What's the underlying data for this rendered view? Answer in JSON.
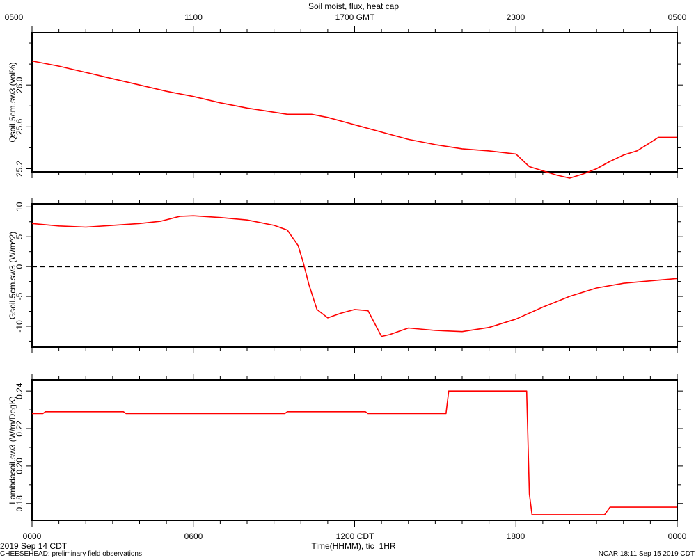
{
  "header": {
    "title": "Soil moist, flux, heat cap",
    "gmt_ticks": [
      "0500",
      "1100",
      "1700 GMT",
      "2300",
      "0500"
    ]
  },
  "footer": {
    "date_label": "2019 Sep 14 CDT",
    "project_label": "CHEESEHEAD: preliminary field observations",
    "time_axis_label": "Time(HHMM), tic=1HR",
    "ncar_label": "NCAR 18:11 Sep 15 2019 CDT",
    "cdt_ticks": [
      "0000",
      "0600",
      "1200 CDT",
      "1800",
      "0000"
    ]
  },
  "colors": {
    "series": "#ff0000",
    "axes": "#000000",
    "zero_line": "#000000"
  },
  "chart_data": [
    {
      "type": "line",
      "title": "Soil moist, flux, heat cap",
      "ylabel": "Qsoil.5cm.sw3 (vol%)",
      "xlabel": "",
      "x_unit": "hours since 0000 CDT",
      "xlim": [
        0,
        24
      ],
      "ylim": [
        25.17,
        26.5
      ],
      "yticks": [
        25.2,
        25.6,
        26.0
      ],
      "ytick_labels": [
        "25.2",
        "25.6",
        "26.0"
      ],
      "series": [
        {
          "x": [
            0,
            1,
            2,
            3,
            4,
            5,
            6,
            7,
            8,
            9,
            9.5,
            10,
            10.4,
            11,
            12,
            13,
            14,
            15,
            16,
            17,
            18,
            18.5,
            19,
            19.5,
            20,
            20.5,
            21,
            21.5,
            22,
            22.5,
            23,
            23.3,
            24
          ],
          "values": [
            26.23,
            26.18,
            26.12,
            26.06,
            26.0,
            25.94,
            25.89,
            25.83,
            25.78,
            25.74,
            25.72,
            25.72,
            25.72,
            25.69,
            25.62,
            25.55,
            25.48,
            25.43,
            25.39,
            25.37,
            25.34,
            25.22,
            25.18,
            25.14,
            25.11,
            25.15,
            25.2,
            25.27,
            25.33,
            25.37,
            25.45,
            25.5,
            25.5
          ]
        }
      ]
    },
    {
      "type": "line",
      "ylabel": "Gsoil.5cm.sw3 (W/m^2)",
      "xlabel": "",
      "x_unit": "hours since 0000 CDT",
      "xlim": [
        0,
        24
      ],
      "ylim": [
        -13.5,
        10.5
      ],
      "yticks": [
        -10,
        -5,
        0,
        5,
        10
      ],
      "ytick_labels": [
        "-10",
        "-5",
        "0",
        "5",
        "10"
      ],
      "reference_line": {
        "y": 0,
        "style": "dashed"
      },
      "series": [
        {
          "x": [
            0,
            1,
            2,
            3,
            4,
            4.8,
            5.5,
            6,
            7,
            8,
            9,
            9.5,
            9.9,
            10.1,
            10.3,
            10.6,
            11,
            11.5,
            12,
            12.5,
            13,
            13.3,
            14,
            15,
            16,
            17,
            18,
            19,
            20,
            21,
            22,
            23,
            24
          ],
          "values": [
            7.2,
            6.8,
            6.6,
            6.9,
            7.2,
            7.6,
            8.4,
            8.5,
            8.2,
            7.8,
            6.9,
            6.1,
            3.5,
            0.5,
            -3.0,
            -7.2,
            -8.6,
            -7.8,
            -7.2,
            -7.4,
            -11.7,
            -11.4,
            -10.3,
            -10.7,
            -10.9,
            -10.2,
            -8.8,
            -6.8,
            -5.0,
            -3.6,
            -2.8,
            -2.4,
            -2.0
          ]
        }
      ]
    },
    {
      "type": "line",
      "ylabel": "Lambdasoil.sw3 (W/m/DegK)",
      "xlabel": "Time(HHMM), tic=1HR",
      "x_unit": "hours since 0000 CDT",
      "xlim": [
        0,
        24
      ],
      "ylim": [
        0.171,
        0.246
      ],
      "yticks": [
        0.18,
        0.2,
        0.22,
        0.24
      ],
      "ytick_labels": [
        "0.18",
        "0.20",
        "0.22",
        "0.24"
      ],
      "xtick_labels": [
        "0000",
        "0600",
        "1200 CDT",
        "1800",
        "0000"
      ],
      "series": [
        {
          "x": [
            0,
            0.4,
            0.5,
            3.4,
            3.5,
            9.4,
            9.5,
            12.4,
            12.5,
            15.4,
            15.5,
            18.4,
            18.5,
            18.6,
            21.3,
            21.5,
            24
          ],
          "values": [
            0.228,
            0.228,
            0.229,
            0.229,
            0.228,
            0.228,
            0.229,
            0.229,
            0.228,
            0.228,
            0.24,
            0.24,
            0.185,
            0.174,
            0.174,
            0.178,
            0.178
          ]
        }
      ]
    }
  ]
}
